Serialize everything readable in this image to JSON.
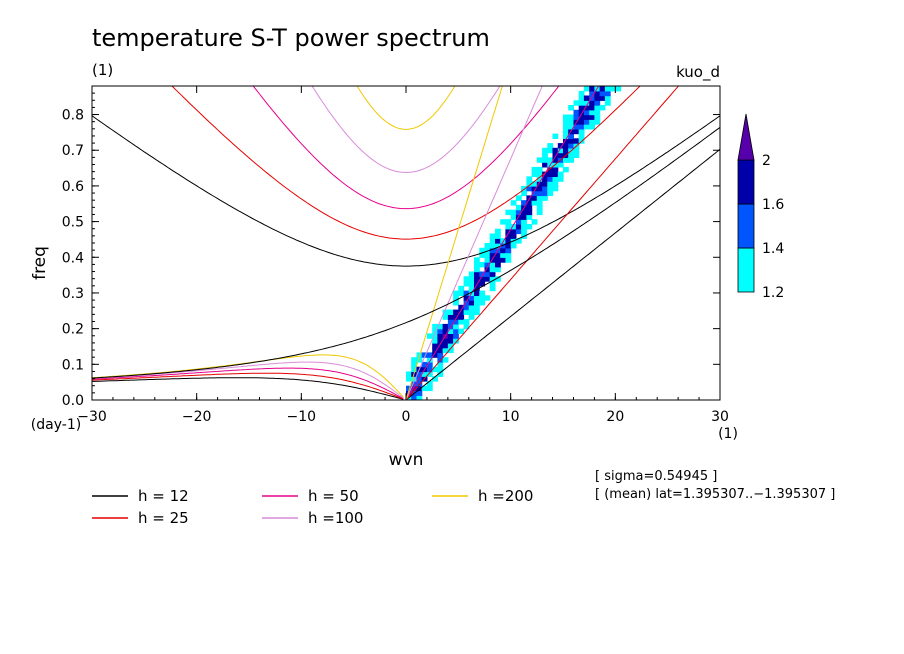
{
  "chart_data": {
    "type": "heatmap",
    "title": "temperature S-T power spectrum",
    "subtitle": "(1)",
    "right_label": "kuo_d",
    "xlabel": "wvn",
    "ylabel": "freq",
    "x_units": "(1)",
    "y_units": "(day-1)",
    "xlim": [
      -30,
      30
    ],
    "ylim": [
      0,
      0.88
    ],
    "x_ticks": [
      -30,
      -20,
      -10,
      0,
      10,
      20,
      30
    ],
    "y_ticks": [
      0.0,
      0.1,
      0.2,
      0.3,
      0.4,
      0.5,
      0.6,
      0.7,
      0.8
    ],
    "x_tick_labels": [
      "−30",
      "−20",
      "−10",
      "0",
      "10",
      "20",
      "30"
    ],
    "y_tick_labels": [
      "0.0",
      "0.1",
      "0.2",
      "0.3",
      "0.4",
      "0.5",
      "0.6",
      "0.7",
      "0.8"
    ],
    "colorbar": {
      "levels": [
        1.2,
        1.4,
        1.6,
        2
      ],
      "labels": [
        "1.2",
        "1.4",
        "1.6",
        "2"
      ],
      "colors": [
        "#00ffff",
        "#0055ff",
        "#0000aa",
        "#5500aa"
      ]
    },
    "series": [
      {
        "name": "h = 12",
        "h": 12,
        "color": "#000000"
      },
      {
        "name": "h = 25",
        "h": 25,
        "color": "#e60000"
      },
      {
        "name": "h = 50",
        "h": 50,
        "color": "#e6008c"
      },
      {
        "name": "h =100",
        "h": 100,
        "color": "#d98cd9"
      },
      {
        "name": "h =200",
        "h": 200,
        "color": "#f0c800"
      }
    ],
    "notes": [
      "[ sigma=0.54945 ]",
      "[ (mean) lat=1.395307..−1.395307 ]"
    ]
  }
}
